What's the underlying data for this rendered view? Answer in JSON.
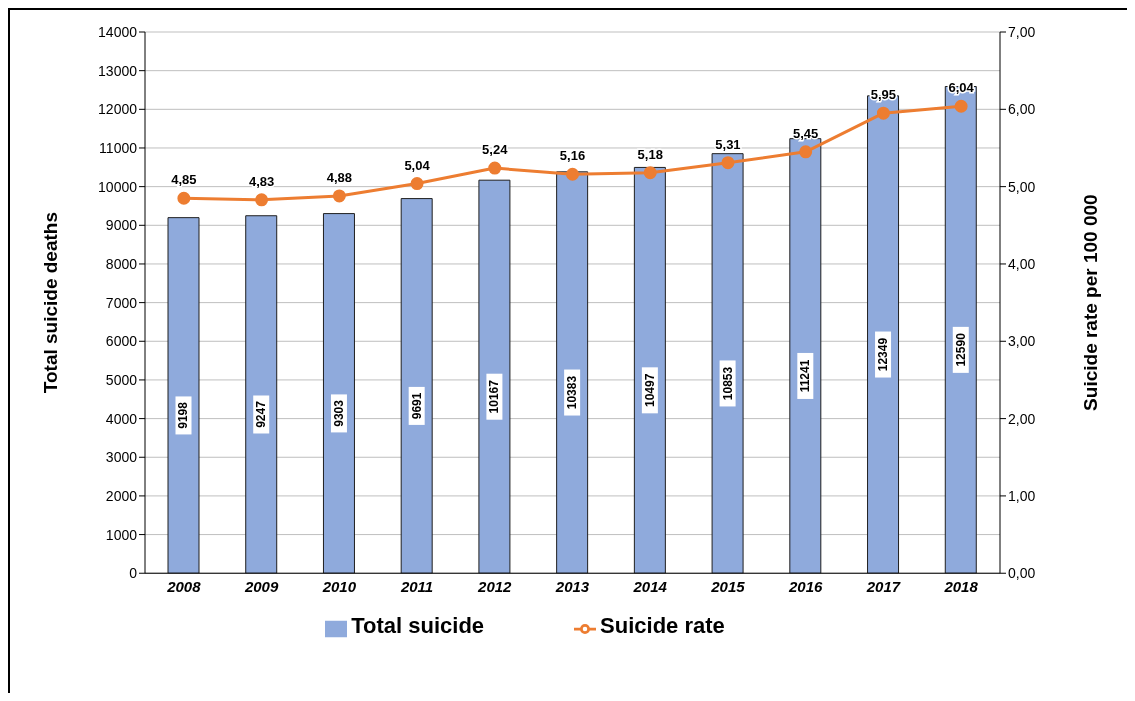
{
  "chart_data": {
    "type": "bar",
    "xlabel": null,
    "ylabel": "Total suicide deaths",
    "y2label": "Suicide rate per 100 000",
    "categories": [
      "2008",
      "2009",
      "2010",
      "2011",
      "2012",
      "2013",
      "2014",
      "2015",
      "2016",
      "2017",
      "2018"
    ],
    "series": [
      {
        "name": "Total suicide",
        "color": "#8faadc",
        "values": [
          9198,
          9247,
          9303,
          9691,
          10167,
          10383,
          10497,
          10853,
          11241,
          12349,
          12590
        ],
        "value_labels": [
          "9198",
          "9247",
          "9303",
          "9691",
          "10167",
          "10383",
          "10497",
          "10853",
          "11241",
          "12349",
          "12590"
        ]
      },
      {
        "name": "Suicide rate",
        "type": "line",
        "axis": "y2",
        "color": "#ed7d31",
        "marker": "circle",
        "values": [
          4.85,
          4.83,
          4.88,
          5.04,
          5.24,
          5.16,
          5.18,
          5.31,
          5.45,
          5.95,
          6.04
        ],
        "value_labels": [
          "4,85",
          "4,83",
          "4,88",
          "5,04",
          "5,24",
          "5,16",
          "5,18",
          "5,31",
          "5,45",
          "5,95",
          "6,04"
        ]
      }
    ],
    "ylim": [
      0,
      14000
    ],
    "yticks": [
      0,
      1000,
      2000,
      3000,
      4000,
      5000,
      6000,
      7000,
      8000,
      9000,
      10000,
      11000,
      12000,
      13000,
      14000
    ],
    "y2lim": [
      0,
      7
    ],
    "y2ticks": [
      {
        "value": 0,
        "label": "0,00"
      },
      {
        "value": 1,
        "label": "1,00"
      },
      {
        "value": 2,
        "label": "2,00"
      },
      {
        "value": 3,
        "label": "3,00"
      },
      {
        "value": 4,
        "label": "4,00"
      },
      {
        "value": 5,
        "label": "5,00"
      },
      {
        "value": 6,
        "label": "6,00"
      },
      {
        "value": 7,
        "label": "7,00"
      }
    ],
    "grid": "y",
    "legend": "bottom"
  }
}
